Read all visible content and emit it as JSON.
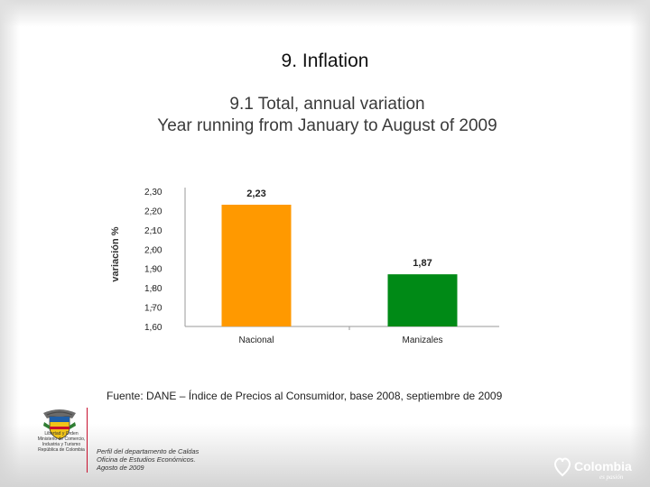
{
  "header": {
    "section_title": "9. Inflation",
    "chart_title_line1": "9.1 Total, annual variation",
    "chart_title_line2": "Year running from January to August of 2009"
  },
  "chart_data": {
    "type": "bar",
    "title": "9.1 Total, annual variation Year running from January to August of 2009",
    "categories": [
      "Nacional",
      "Manizales"
    ],
    "values": [
      2.23,
      1.87
    ],
    "value_labels": [
      "2,23",
      "1,87"
    ],
    "bar_colors": [
      "#ff9900",
      "#008a16"
    ],
    "xlabel": "",
    "ylabel": "variación %",
    "ylim": [
      1.6,
      2.3
    ],
    "yticks": [
      1.6,
      1.7,
      1.8,
      1.9,
      2.0,
      2.1,
      2.2,
      2.3
    ],
    "ytick_labels": [
      "1,60",
      "1,70",
      "1,80",
      "1,90",
      "2,00",
      "2,10",
      "2,20",
      "2,30"
    ],
    "grid": false,
    "legend": "none"
  },
  "footer": {
    "source": "Fuente: DANE – Índice de Precios al Consumidor, base 2008, septiembre de 2009",
    "note_line1": "Perfil del departamento de Caldas",
    "note_line2": "Oficina de Estudios Económicos.",
    "note_line3": "Agosto de 2009",
    "seal_line1": "Libertad y Orden",
    "seal_line2": "Ministerio de Comercio,",
    "seal_line3": "Industria y Turismo",
    "seal_line4": "República de Colombia",
    "logo_text": "Colombia",
    "logo_tagline": "es pasión"
  },
  "icons": {
    "seal": "coat-of-arms-icon",
    "logo": "heart-logo-icon"
  }
}
